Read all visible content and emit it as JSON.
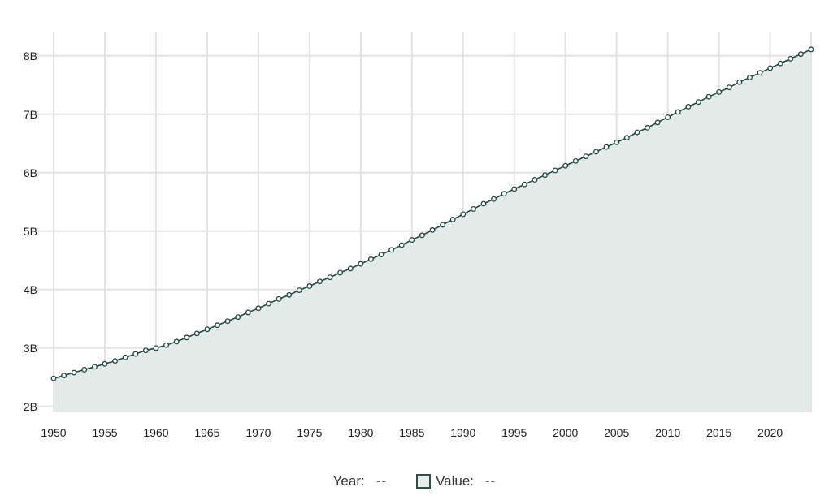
{
  "colors": {
    "line": "#1f4a44",
    "area_fill": "#e4eae8",
    "grid": "#e2e2e2",
    "point_fill": "#ffffff"
  },
  "legend": {
    "year_label": "Year:",
    "year_value": "--",
    "value_label": "Value:",
    "value_value": "--"
  },
  "chart_data": {
    "type": "area",
    "title": "",
    "xlabel": "",
    "ylabel": "",
    "grid": true,
    "xlim": [
      1950,
      2024
    ],
    "ylim": [
      1.9,
      8.4
    ],
    "x_ticks": [
      1950,
      1955,
      1960,
      1965,
      1970,
      1975,
      1980,
      1985,
      1990,
      1995,
      2000,
      2005,
      2010,
      2015,
      2020
    ],
    "x_tick_labels": [
      "1950",
      "1955",
      "1960",
      "1965",
      "1970",
      "1975",
      "1980",
      "1985",
      "1990",
      "1995",
      "2000",
      "2005",
      "2010",
      "2015",
      "2020"
    ],
    "y_ticks": [
      2,
      3,
      4,
      5,
      6,
      7,
      8
    ],
    "y_tick_labels": [
      "2B",
      "3B",
      "4B",
      "5B",
      "6B",
      "7B",
      "8B"
    ],
    "y_unit": "billions",
    "series": [
      {
        "x": [
          1950,
          1951,
          1952,
          1953,
          1954,
          1955,
          1956,
          1957,
          1958,
          1959,
          1960,
          1961,
          1962,
          1963,
          1964,
          1965,
          1966,
          1967,
          1968,
          1969,
          1970,
          1971,
          1972,
          1973,
          1974,
          1975,
          1976,
          1977,
          1978,
          1979,
          1980,
          1981,
          1982,
          1983,
          1984,
          1985,
          1986,
          1987,
          1988,
          1989,
          1990,
          1991,
          1992,
          1993,
          1994,
          1995,
          1996,
          1997,
          1998,
          1999,
          2000,
          2001,
          2002,
          2003,
          2004,
          2005,
          2006,
          2007,
          2008,
          2009,
          2010,
          2011,
          2012,
          2013,
          2014,
          2015,
          2016,
          2017,
          2018,
          2019,
          2020,
          2021,
          2022,
          2023,
          2024
        ],
        "values": [
          2.48,
          2.53,
          2.58,
          2.63,
          2.68,
          2.73,
          2.78,
          2.84,
          2.9,
          2.96,
          3.0,
          3.05,
          3.11,
          3.18,
          3.25,
          3.32,
          3.39,
          3.46,
          3.53,
          3.61,
          3.68,
          3.76,
          3.84,
          3.91,
          3.99,
          4.06,
          4.14,
          4.21,
          4.29,
          4.36,
          4.44,
          4.52,
          4.6,
          4.68,
          4.76,
          4.85,
          4.93,
          5.02,
          5.11,
          5.2,
          5.29,
          5.38,
          5.47,
          5.55,
          5.64,
          5.72,
          5.8,
          5.88,
          5.96,
          6.04,
          6.12,
          6.2,
          6.28,
          6.36,
          6.44,
          6.52,
          6.6,
          6.69,
          6.77,
          6.86,
          6.95,
          7.04,
          7.13,
          7.21,
          7.3,
          7.38,
          7.46,
          7.55,
          7.63,
          7.71,
          7.79,
          7.87,
          7.95,
          8.03,
          8.11
        ]
      }
    ]
  }
}
